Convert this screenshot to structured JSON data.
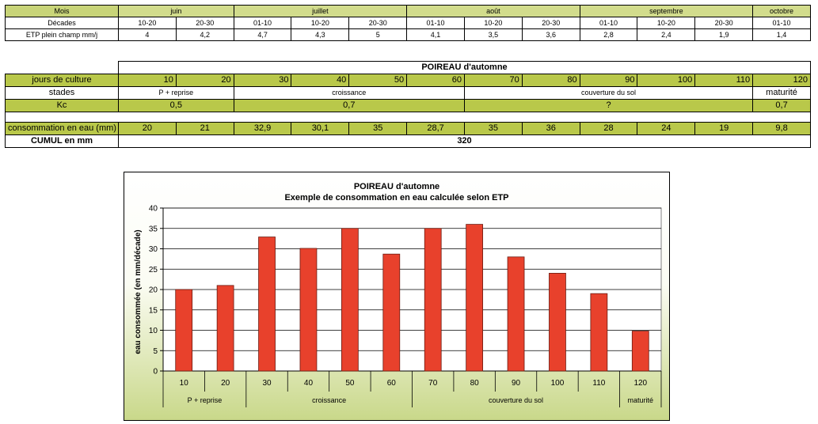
{
  "table1": {
    "row_mois_label": "Mois",
    "months": [
      "juin",
      "juillet",
      "août",
      "septembre",
      "octobre"
    ],
    "row_decades_label": "Décades",
    "decades": [
      "10-20",
      "20-30",
      "01-10",
      "10-20",
      "20-30",
      "01-10",
      "10-20",
      "20-30",
      "01-10",
      "10-20",
      "20-30",
      "01-10"
    ],
    "row_etp_label": "ETP plein champ mm/j",
    "etp": [
      "4",
      "4,2",
      "4,7",
      "4,3",
      "5",
      "4,1",
      "3,5",
      "3,6",
      "2,8",
      "2,4",
      "1,9",
      "1,4"
    ]
  },
  "table2": {
    "title": "POIREAU d'automne",
    "jours_label": "jours de culture",
    "jours": [
      "10",
      "20",
      "30",
      "40",
      "50",
      "60",
      "70",
      "80",
      "90",
      "100",
      "110",
      "120"
    ],
    "stades_label": "stades",
    "stades": [
      "P + reprise",
      "croissance",
      "couverture du sol",
      "maturité"
    ],
    "kc_label": "Kc",
    "kc": [
      "0,5",
      "0,7",
      "?",
      "0,7"
    ],
    "conso_label": "consommation en eau (mm)",
    "conso": [
      "20",
      "21",
      "32,9",
      "30,1",
      "35",
      "28,7",
      "35",
      "36",
      "28",
      "24",
      "19",
      "9,8"
    ],
    "cumul_label": "CUMUL en mm",
    "cumul": "320"
  },
  "colors": {
    "bar": "#e8412c",
    "header_green": "#d2dc8c",
    "row_green": "#b9c84a",
    "chart_gradient_bottom": "#c9d88a"
  },
  "chart_data": {
    "type": "bar",
    "title": "POIREAU d'automne",
    "subtitle": "Exemple de consommation en eau calculée selon ETP",
    "ylabel": "eau consommée (en mm/décade)",
    "xlabel": "",
    "categories": [
      "10",
      "20",
      "30",
      "40",
      "50",
      "60",
      "70",
      "80",
      "90",
      "100",
      "110",
      "120"
    ],
    "values": [
      20,
      21,
      32.9,
      30.1,
      35,
      28.7,
      35,
      36,
      28,
      24,
      19,
      9.8
    ],
    "ylim": [
      0,
      40
    ],
    "yticks": [
      "0",
      "5",
      "10",
      "15",
      "20",
      "25",
      "30",
      "35",
      "40"
    ],
    "groups": [
      {
        "label": "P + reprise",
        "count": 2
      },
      {
        "label": "croissance",
        "count": 4
      },
      {
        "label": "couverture du sol",
        "count": 5
      },
      {
        "label": "maturité",
        "count": 1
      }
    ],
    "grid": true,
    "legend": "none"
  }
}
